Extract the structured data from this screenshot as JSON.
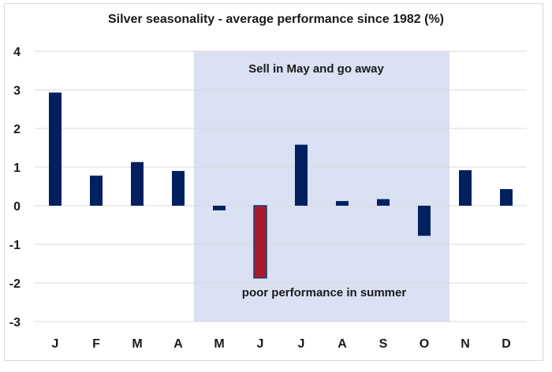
{
  "chart_data": {
    "type": "bar",
    "title": "Silver seasonality - average performance since 1982 (%)",
    "xlabel": "",
    "ylabel": "",
    "categories": [
      "J",
      "F",
      "M",
      "A",
      "M",
      "J",
      "J",
      "A",
      "S",
      "O",
      "N",
      "D"
    ],
    "values": [
      2.93,
      0.78,
      1.13,
      0.9,
      -0.12,
      -1.87,
      1.58,
      0.12,
      0.17,
      -0.78,
      0.92,
      0.43
    ],
    "ylim": [
      -3,
      4
    ],
    "yticks": [
      4,
      3,
      2,
      1,
      0,
      -1,
      -2,
      -3
    ],
    "grid": true,
    "legend": "none",
    "highlight_index": 5,
    "shaded_range": [
      4,
      9
    ],
    "annotations": {
      "top": "Sell in May and go away",
      "bottom": "poor performance in summer"
    },
    "colors": {
      "bar": "#002060",
      "bar_highlight": "#a51d2d",
      "highlight_stroke": "#1f3a78",
      "shade": "#d9e1f2",
      "grid": "#d9d9d9"
    }
  }
}
